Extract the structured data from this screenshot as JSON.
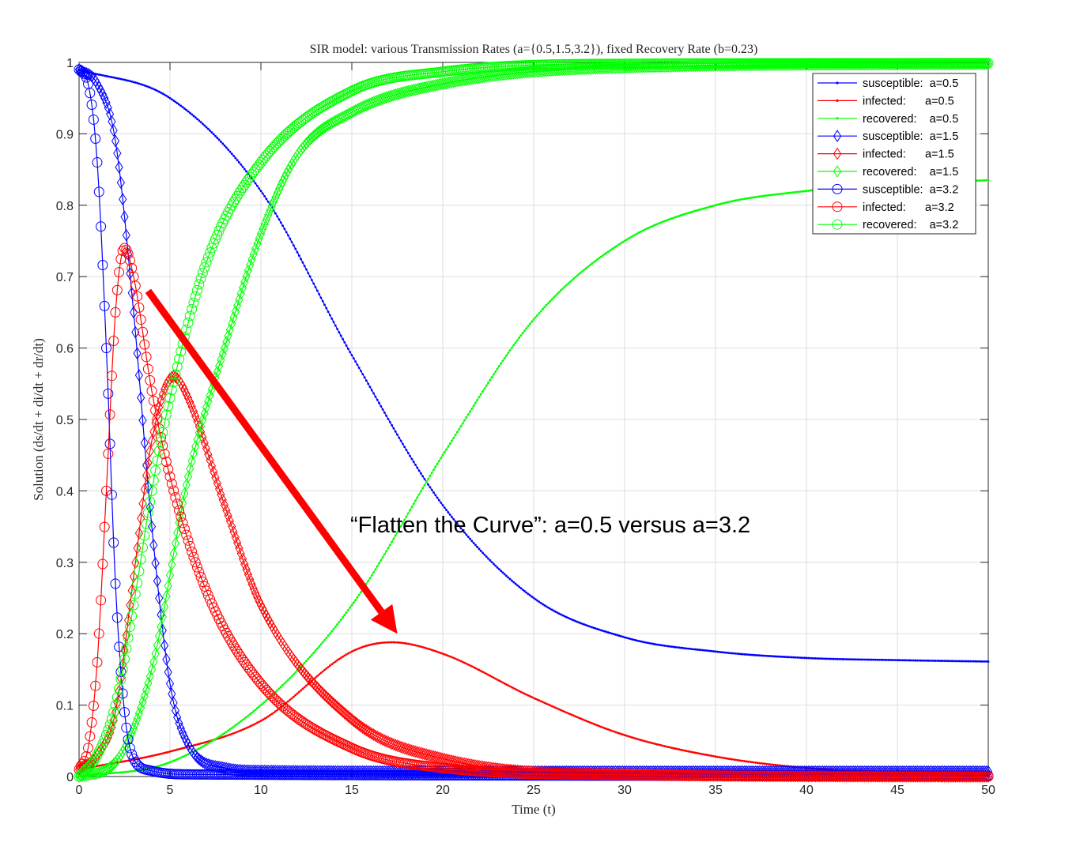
{
  "chart_data": {
    "type": "line",
    "title": "SIR model: various Transmission Rates (a={0.5,1.5,3.2}), fixed Recovery Rate (b=0.23)",
    "xlabel": "Time (t)",
    "ylabel": "Solution (ds/dt + di/dt + dr/dt)",
    "xlim": [
      0,
      50
    ],
    "ylim": [
      0,
      1
    ],
    "xticks": [
      "0",
      "5",
      "10",
      "15",
      "20",
      "25",
      "30",
      "35",
      "40",
      "45",
      "50"
    ],
    "yticks": [
      "0",
      "0.1",
      "0.2",
      "0.3",
      "0.4",
      "0.5",
      "0.6",
      "0.7",
      "0.8",
      "0.9",
      "1"
    ],
    "grid": true,
    "legend_position": "top-right",
    "model": {
      "recovery_rate_b": 0.23,
      "transmission_rates_a": [
        0.5,
        1.5,
        3.2
      ],
      "initial": {
        "s": 0.99,
        "i": 0.01,
        "r": 0.0
      }
    },
    "series": [
      {
        "name": "susceptible:  a=0.5",
        "compartment": "s",
        "a": 0.5,
        "color": "#0000ff",
        "marker": "dot",
        "points": [
          [
            0,
            0.99
          ],
          [
            5,
            0.95
          ],
          [
            10,
            0.82
          ],
          [
            15,
            0.59
          ],
          [
            20,
            0.38
          ],
          [
            25,
            0.25
          ],
          [
            30,
            0.195
          ],
          [
            35,
            0.175
          ],
          [
            40,
            0.166
          ],
          [
            45,
            0.163
          ],
          [
            50,
            0.161
          ]
        ]
      },
      {
        "name": "infected:     a=0.5",
        "compartment": "i",
        "a": 0.5,
        "color": "#ff0000",
        "marker": "dot",
        "points": [
          [
            0,
            0.01
          ],
          [
            5,
            0.035
          ],
          [
            10,
            0.078
          ],
          [
            15,
            0.175
          ],
          [
            17.2,
            0.188
          ],
          [
            20,
            0.172
          ],
          [
            25,
            0.11
          ],
          [
            30,
            0.058
          ],
          [
            35,
            0.028
          ],
          [
            40,
            0.012
          ],
          [
            45,
            0.006
          ],
          [
            50,
            0.003
          ]
        ]
      },
      {
        "name": "recovered:    a=0.5",
        "compartment": "r",
        "a": 0.5,
        "color": "#00ff00",
        "marker": "dot",
        "points": [
          [
            0,
            0
          ],
          [
            5,
            0.02
          ],
          [
            10,
            0.1
          ],
          [
            15,
            0.24
          ],
          [
            20,
            0.45
          ],
          [
            25,
            0.64
          ],
          [
            30,
            0.75
          ],
          [
            35,
            0.8
          ],
          [
            40,
            0.82
          ],
          [
            45,
            0.83
          ],
          [
            50,
            0.835
          ]
        ]
      },
      {
        "name": "susceptible:  a=1.5",
        "compartment": "s",
        "a": 1.5,
        "color": "#0000ff",
        "marker": "diamond",
        "points": [
          [
            0,
            0.99
          ],
          [
            1,
            0.97
          ],
          [
            2,
            0.89
          ],
          [
            3,
            0.65
          ],
          [
            4,
            0.35
          ],
          [
            5,
            0.13
          ],
          [
            6,
            0.045
          ],
          [
            8,
            0.012
          ],
          [
            10,
            0.008
          ],
          [
            20,
            0.007
          ],
          [
            50,
            0.007
          ]
        ]
      },
      {
        "name": "infected:     a=1.5",
        "compartment": "i",
        "a": 1.5,
        "color": "#ff0000",
        "marker": "diamond",
        "points": [
          [
            0,
            0.01
          ],
          [
            1,
            0.03
          ],
          [
            2,
            0.09
          ],
          [
            3,
            0.28
          ],
          [
            4,
            0.47
          ],
          [
            5.2,
            0.56
          ],
          [
            6,
            0.53
          ],
          [
            8,
            0.38
          ],
          [
            10,
            0.24
          ],
          [
            15,
            0.08
          ],
          [
            20,
            0.025
          ],
          [
            30,
            0.003
          ],
          [
            50,
            0
          ]
        ]
      },
      {
        "name": "recovered:    a=1.5",
        "compartment": "r",
        "a": 1.5,
        "color": "#00ff00",
        "marker": "diamond",
        "points": [
          [
            0,
            0
          ],
          [
            2,
            0.02
          ],
          [
            4,
            0.15
          ],
          [
            6,
            0.42
          ],
          [
            8,
            0.6
          ],
          [
            10,
            0.76
          ],
          [
            12,
            0.87
          ],
          [
            15,
            0.93
          ],
          [
            20,
            0.97
          ],
          [
            30,
            0.993
          ],
          [
            50,
            0.998
          ]
        ]
      },
      {
        "name": "susceptible:  a=3.2",
        "compartment": "s",
        "a": 3.2,
        "color": "#0000ff",
        "marker": "circle",
        "points": [
          [
            0,
            0.99
          ],
          [
            0.5,
            0.97
          ],
          [
            1,
            0.86
          ],
          [
            1.5,
            0.6
          ],
          [
            2,
            0.27
          ],
          [
            2.5,
            0.09
          ],
          [
            3,
            0.025
          ],
          [
            4,
            0.008
          ],
          [
            6,
            0.003
          ],
          [
            50,
            0.001
          ]
        ]
      },
      {
        "name": "infected:     a=3.2",
        "compartment": "i",
        "a": 3.2,
        "color": "#ff0000",
        "marker": "circle",
        "points": [
          [
            0,
            0.01
          ],
          [
            0.5,
            0.04
          ],
          [
            1,
            0.16
          ],
          [
            1.5,
            0.4
          ],
          [
            2,
            0.65
          ],
          [
            2.5,
            0.74
          ],
          [
            3,
            0.7
          ],
          [
            4,
            0.54
          ],
          [
            5,
            0.42
          ],
          [
            7,
            0.26
          ],
          [
            10,
            0.13
          ],
          [
            15,
            0.04
          ],
          [
            20,
            0.012
          ],
          [
            30,
            0.002
          ],
          [
            50,
            0
          ]
        ]
      },
      {
        "name": "recovered:    a=3.2",
        "compartment": "r",
        "a": 3.2,
        "color": "#00ff00",
        "marker": "circle",
        "points": [
          [
            0,
            0
          ],
          [
            1,
            0.03
          ],
          [
            2,
            0.1
          ],
          [
            3,
            0.24
          ],
          [
            4,
            0.4
          ],
          [
            5,
            0.53
          ],
          [
            7,
            0.72
          ],
          [
            10,
            0.86
          ],
          [
            15,
            0.96
          ],
          [
            20,
            0.987
          ],
          [
            30,
            0.998
          ],
          [
            50,
            0.999
          ]
        ]
      }
    ],
    "legend": [
      "susceptible:  a=0.5",
      "infected:      a=0.5",
      "recovered:    a=0.5",
      "susceptible:  a=1.5",
      "infected:      a=1.5",
      "recovered:    a=1.5",
      "susceptible:  a=3.2",
      "infected:      a=3.2",
      "recovered:    a=3.2"
    ],
    "annotation": {
      "text": "“Flatten the Curve”: a=0.5 versus a=3.2",
      "arrow_color": "#ff0000",
      "arrow_from": [
        3.8,
        0.68
      ],
      "arrow_to": [
        17.5,
        0.2
      ]
    }
  }
}
